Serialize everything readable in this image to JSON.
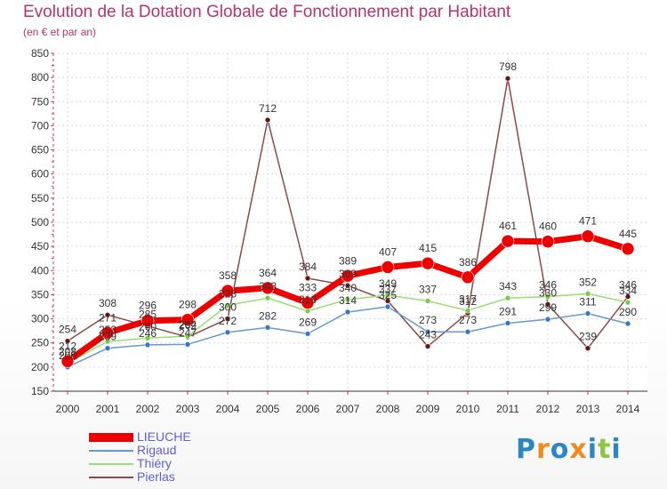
{
  "header": {
    "title": "Evolution de la Dotation Globale de Fonctionnement par Habitant",
    "subtitle": "(en € et par an)"
  },
  "brand": {
    "text": "Proxiti",
    "letter_colors": [
      "#2b86c8",
      "#f08c1e",
      "#2b86c8",
      "#f08c1e",
      "#2b86c8",
      "#8cc63e",
      "#2b86c8"
    ]
  },
  "chart_data": {
    "type": "line",
    "title": "Evolution de la Dotation Globale de Fonctionnement par Habitant",
    "subtitle": "(en € et par an)",
    "xlabel": "",
    "ylabel": "",
    "ylim": [
      150,
      850
    ],
    "ytick_step": 50,
    "grid": true,
    "legend_position": "bottom-left",
    "categories": [
      "2000",
      "2001",
      "2002",
      "2003",
      "2004",
      "2005",
      "2006",
      "2007",
      "2008",
      "2009",
      "2010",
      "2011",
      "2012",
      "2013",
      "2014"
    ],
    "series": [
      {
        "name": "Pierlas",
        "color": "#8a4a4a",
        "marker_color": "#6b1414",
        "values": [
          254,
          308,
          285,
          262,
          300,
          712,
          384,
          369,
          337,
          243,
          312,
          798,
          330,
          239,
          346
        ],
        "labels": [
          "254",
          "308",
          "285",
          "262",
          "300",
          "712",
          "384",
          "369",
          "337",
          "243",
          "312",
          "798",
          "330",
          "239",
          "346"
        ]
      },
      {
        "name": "Rigaud",
        "color": "#6699cc",
        "marker_color": "#3377cc",
        "values": [
          200,
          239,
          246,
          247,
          272,
          282,
          269,
          314,
          325,
          273,
          273,
          291,
          299,
          311,
          290
        ],
        "labels": [
          "200",
          "239",
          "246",
          "247",
          "272",
          "282",
          "269",
          "314",
          "325",
          "273",
          "273",
          "291",
          "299",
          "311",
          "290"
        ]
      },
      {
        "name": "Thiéry",
        "color": "#99dd77",
        "marker_color": "#77cc44",
        "values": [
          208,
          253,
          260,
          264,
          328,
          343,
          316,
          340,
          349,
          337,
          317,
          343,
          346,
          352,
          334
        ],
        "labels": [
          "208",
          "253",
          "260",
          "264",
          "328",
          "343",
          "316",
          "340",
          "349",
          "337",
          "317",
          "343",
          "346",
          "352",
          "334"
        ]
      },
      {
        "name": "LIEUCHE",
        "color": "#ee0000",
        "marker_color": "#ee0000",
        "values": [
          212,
          271,
          296,
          298,
          358,
          364,
          333,
          389,
          407,
          415,
          386,
          461,
          460,
          471,
          445
        ],
        "labels": [
          "212",
          "271",
          "296",
          "298",
          "358",
          "364",
          "333",
          "389",
          "407",
          "415",
          "386",
          "461",
          "460",
          "471",
          "445"
        ]
      }
    ],
    "legend": [
      {
        "name": "LIEUCHE",
        "color": "#ee0000"
      },
      {
        "name": "Rigaud",
        "color": "#6699cc"
      },
      {
        "name": "Thiéry",
        "color": "#99dd77"
      },
      {
        "name": "Pierlas",
        "color": "#8a4a4a"
      }
    ]
  }
}
